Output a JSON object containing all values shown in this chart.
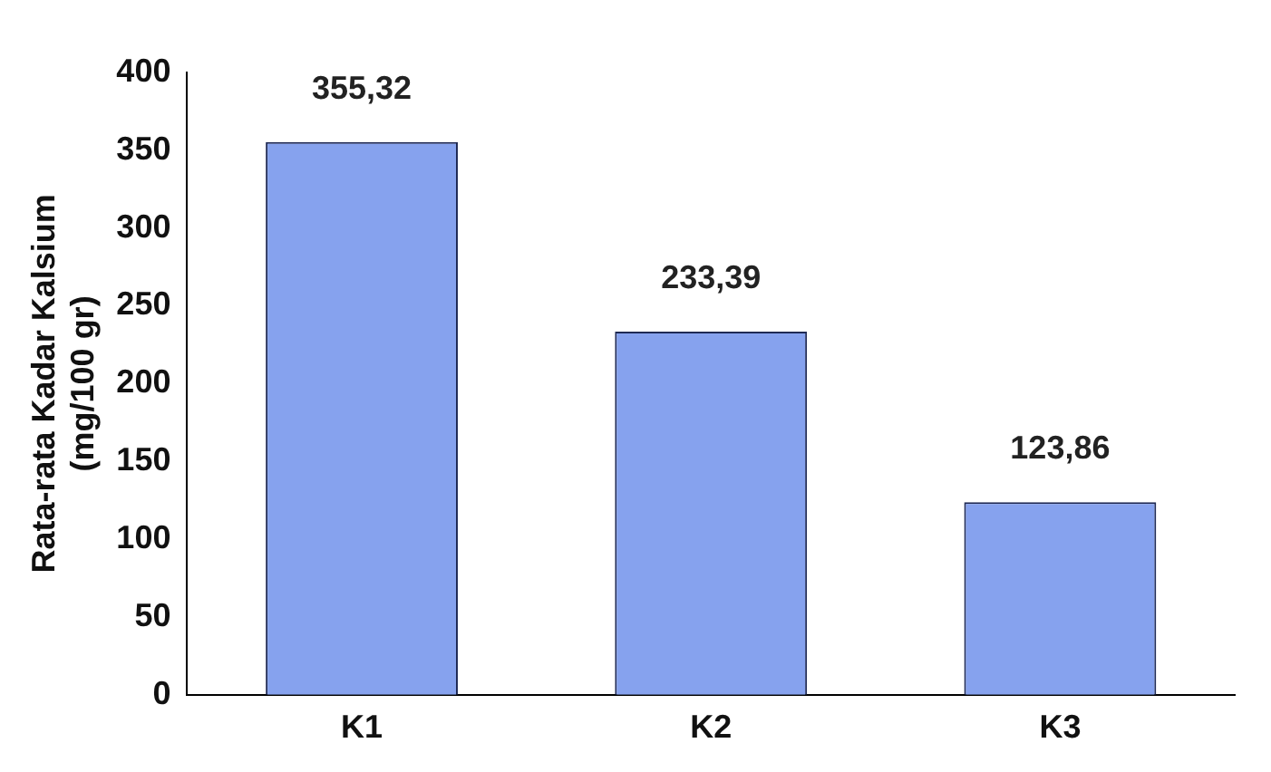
{
  "chart_data": {
    "type": "bar",
    "ylabel": "Rata-rata Kadar Kalsium\n(mg/100 gr)",
    "categories": [
      "K1",
      "K2",
      "K3"
    ],
    "values": [
      355.32,
      233.39,
      123.86
    ],
    "color": "#86a2ee",
    "value_labels": [
      "355,32",
      "233,39",
      "123,86"
    ],
    "ylim": [
      0,
      400
    ],
    "yticks": [
      0,
      50,
      100,
      150,
      200,
      250,
      300,
      350,
      400
    ],
    "grid": false,
    "legend": false
  }
}
